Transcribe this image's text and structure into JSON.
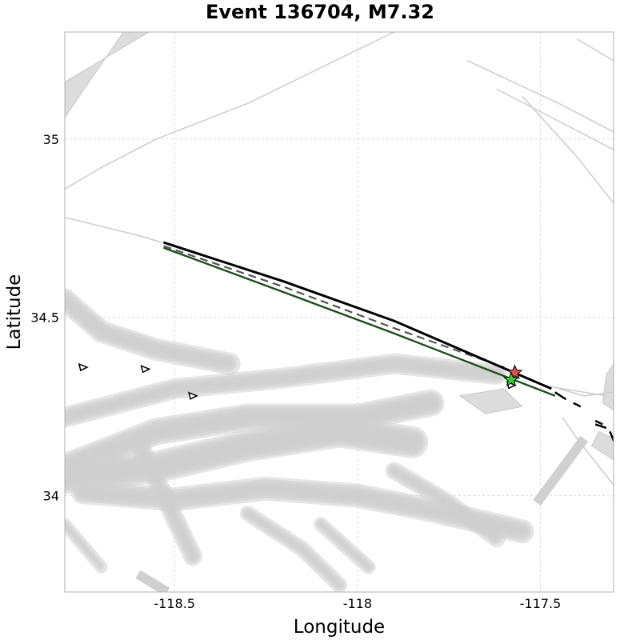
{
  "title": "Event 136704, M7.32",
  "xlabel": "Longitude",
  "ylabel": "Latitude",
  "xlim": [
    -118.8,
    -117.3
  ],
  "ylim": [
    33.73,
    35.3
  ],
  "xticks": [
    {
      "value": -118.5,
      "label": "-118.5"
    },
    {
      "value": -118.0,
      "label": "-118"
    },
    {
      "value": -117.5,
      "label": "-117.5"
    }
  ],
  "yticks": [
    {
      "value": 35.0,
      "label": "35"
    },
    {
      "value": 34.5,
      "label": "34.5"
    },
    {
      "value": 34.0,
      "label": "34"
    }
  ],
  "grid": true,
  "colors": {
    "faults": "#cccccc",
    "mesh": "#cfcfcf",
    "rupture_top": "#000000",
    "rupture_mid": "#555555",
    "rupture_bottom": "#1d4d1d",
    "hypocenter_red": "#e05050",
    "hypocenter_green": "#33cc33"
  },
  "rupture": {
    "top_trace": [
      [
        -118.53,
        34.71
      ],
      [
        -118.2,
        34.6
      ],
      [
        -117.9,
        34.49
      ],
      [
        -117.47,
        34.3
      ]
    ],
    "mid_trace": [
      [
        -118.53,
        34.7
      ],
      [
        -118.2,
        34.585
      ],
      [
        -117.9,
        34.47
      ],
      [
        -117.6,
        34.36
      ]
    ],
    "bottom_trace": [
      [
        -118.53,
        34.695
      ],
      [
        -118.2,
        34.57
      ],
      [
        -117.9,
        34.455
      ],
      [
        -117.46,
        34.28
      ]
    ]
  },
  "segments": [
    [
      [
        -117.46,
        34.29
      ],
      [
        -117.43,
        34.27
      ]
    ],
    [
      [
        -117.41,
        34.26
      ],
      [
        -117.39,
        34.25
      ]
    ],
    [
      [
        -117.35,
        34.2
      ],
      [
        -117.32,
        34.19
      ]
    ],
    [
      [
        -117.31,
        34.18
      ],
      [
        -117.29,
        34.13
      ]
    ],
    [
      [
        -117.35,
        34.21
      ],
      [
        -117.33,
        34.2
      ]
    ]
  ],
  "hypocenters": [
    {
      "name": "red",
      "lon": -117.57,
      "lat": 34.345
    },
    {
      "name": "green",
      "lon": -117.58,
      "lat": 34.325
    }
  ],
  "triangles": [
    {
      "lon": -118.75,
      "lat": 34.36
    },
    {
      "lon": -118.58,
      "lat": 34.355
    },
    {
      "lon": -118.45,
      "lat": 34.28
    },
    {
      "lon": -117.58,
      "lat": 34.31
    }
  ],
  "faults": [
    [
      [
        -118.8,
        34.86
      ],
      [
        -118.7,
        34.92
      ],
      [
        -118.55,
        35.0
      ],
      [
        -118.3,
        35.1
      ],
      [
        -118.1,
        35.2
      ],
      [
        -117.9,
        35.3
      ]
    ],
    [
      [
        -118.8,
        34.78
      ],
      [
        -118.6,
        34.73
      ],
      [
        -118.47,
        34.69
      ]
    ],
    [
      [
        -117.7,
        35.22
      ],
      [
        -117.45,
        35.1
      ],
      [
        -117.3,
        35.02
      ]
    ],
    [
      [
        -117.55,
        35.12
      ],
      [
        -117.4,
        34.95
      ],
      [
        -117.3,
        34.82
      ]
    ],
    [
      [
        -117.62,
        35.14
      ],
      [
        -117.45,
        35.05
      ],
      [
        -117.3,
        34.97
      ]
    ],
    [
      [
        -117.4,
        35.28
      ],
      [
        -117.3,
        35.22
      ]
    ],
    [
      [
        -117.45,
        34.3
      ],
      [
        -117.38,
        34.28
      ],
      [
        -117.3,
        34.29
      ]
    ],
    [
      [
        -117.44,
        34.22
      ],
      [
        -117.4,
        34.16
      ],
      [
        -117.3,
        34.03
      ]
    ],
    [
      [
        -117.5,
        34.31
      ],
      [
        -117.32,
        34.28
      ]
    ]
  ],
  "mesh_bands": [
    {
      "width": 26,
      "points": [
        [
          -118.8,
          34.22
        ],
        [
          -118.5,
          34.3
        ],
        [
          -118.2,
          34.33
        ],
        [
          -117.9,
          34.37
        ],
        [
          -117.62,
          34.34
        ]
      ]
    },
    {
      "width": 34,
      "points": [
        [
          -118.8,
          34.08
        ],
        [
          -118.55,
          34.18
        ],
        [
          -118.3,
          34.22
        ],
        [
          -118.0,
          34.22
        ],
        [
          -117.8,
          34.26
        ]
      ]
    },
    {
      "width": 40,
      "points": [
        [
          -118.8,
          34.05
        ],
        [
          -118.55,
          34.08
        ],
        [
          -118.3,
          34.14
        ],
        [
          -118.05,
          34.18
        ],
        [
          -117.85,
          34.15
        ]
      ]
    },
    {
      "width": 30,
      "points": [
        [
          -118.75,
          34.01
        ],
        [
          -118.5,
          33.99
        ],
        [
          -118.25,
          34.02
        ],
        [
          -118.0,
          34.0
        ],
        [
          -117.8,
          33.96
        ],
        [
          -117.55,
          33.9
        ]
      ]
    },
    {
      "width": 28,
      "points": [
        [
          -118.8,
          34.55
        ],
        [
          -118.7,
          34.46
        ],
        [
          -118.55,
          34.41
        ],
        [
          -118.35,
          34.37
        ]
      ]
    },
    {
      "width": 24,
      "points": [
        [
          -118.6,
          34.15
        ],
        [
          -118.52,
          33.98
        ],
        [
          -118.45,
          33.83
        ]
      ]
    },
    {
      "width": 20,
      "points": [
        [
          -118.3,
          33.95
        ],
        [
          -118.15,
          33.85
        ],
        [
          -118.05,
          33.75
        ]
      ]
    },
    {
      "width": 22,
      "points": [
        [
          -117.9,
          34.07
        ],
        [
          -117.75,
          33.98
        ],
        [
          -117.62,
          33.88
        ]
      ]
    },
    {
      "width": 18,
      "points": [
        [
          -118.1,
          33.92
        ],
        [
          -117.97,
          33.8
        ]
      ]
    },
    {
      "width": 16,
      "points": [
        [
          -118.8,
          33.92
        ],
        [
          -118.7,
          33.8
        ]
      ]
    }
  ],
  "mesh_patches": [
    [
      [
        -118.8,
        35.06
      ],
      [
        -118.64,
        35.3
      ],
      [
        -118.57,
        35.3
      ],
      [
        -118.8,
        35.16
      ]
    ],
    [
      [
        -117.65,
        34.23
      ],
      [
        -117.72,
        34.28
      ],
      [
        -117.6,
        34.3
      ],
      [
        -117.55,
        34.25
      ]
    ],
    [
      [
        -117.36,
        34.14
      ],
      [
        -117.3,
        34.1
      ],
      [
        -117.3,
        34.16
      ],
      [
        -117.34,
        34.18
      ]
    ],
    [
      [
        -117.32,
        34.34
      ],
      [
        -117.3,
        34.37
      ],
      [
        -117.3,
        34.24
      ],
      [
        -117.33,
        34.26
      ]
    ]
  ],
  "solid_bars": [
    [
      [
        -117.51,
        33.98
      ],
      [
        -117.38,
        34.16
      ]
    ],
    [
      [
        -118.6,
        33.78
      ],
      [
        -118.52,
        33.73
      ]
    ]
  ]
}
